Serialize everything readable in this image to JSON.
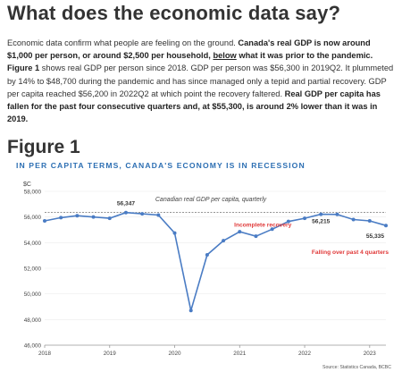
{
  "heading": "What does the economic data say?",
  "paragraph": {
    "p1": "Economic data confirm what people are feeling on the ground. ",
    "b1": "Canada's real GDP is now around $1,000 per person, or around $2,500 per household, ",
    "u1": "below",
    "b2": " what it was prior to the pandemic.",
    "p2": " ",
    "b3": "Figure 1",
    "p3": " shows real GDP per person since 2018. GDP per person was $56,300 in 2019Q2. It plummeted by 14% to $48,700 during the pandemic and has since managed only a tepid and partial recovery. GDP per capita reached $56,200 in 2022Q2 at which point the recovery faltered. ",
    "b4": "Real GDP per capita has fallen for the past four consecutive quarters and, at $55,300, is around 2% lower than it was in 2019."
  },
  "figure_label": "Figure 1",
  "chart_data": {
    "type": "line",
    "title": "IN PER CAPITA TERMS, CANADA'S ECONOMY IS IN RECESSION",
    "subtitle": "Canadian real GDP per capita, quarterly",
    "ylabel": "$C",
    "source": "Source: Statistics Canada, BCBC",
    "ylim": [
      46000,
      58000
    ],
    "yticks": [
      46000,
      48000,
      50000,
      52000,
      54000,
      56000,
      58000
    ],
    "ytick_labels": [
      "46,000",
      "48,000",
      "50,000",
      "52,000",
      "54,000",
      "56,000",
      "58,000"
    ],
    "xlim": [
      2018.0,
      2023.25
    ],
    "xticks": [
      2018,
      2019,
      2020,
      2021,
      2022,
      2023
    ],
    "xtick_labels": [
      "2018",
      "2019",
      "2020",
      "2021",
      "2022",
      "2023"
    ],
    "reference_line": 56347,
    "series": [
      {
        "x": [
          2018.0,
          2018.25,
          2018.5,
          2018.75,
          2019.0,
          2019.25,
          2019.5,
          2019.75,
          2020.0,
          2020.25,
          2020.5,
          2020.75,
          2021.0,
          2021.25,
          2021.5,
          2021.75,
          2022.0,
          2022.25,
          2022.5,
          2022.75,
          2023.0,
          2023.25
        ],
        "values": [
          55700,
          55950,
          56100,
          56000,
          55900,
          56347,
          56250,
          56150,
          54750,
          48700,
          53050,
          54150,
          54850,
          54500,
          55050,
          55650,
          55900,
          56215,
          56200,
          55800,
          55700,
          55335
        ]
      }
    ],
    "annotations": [
      {
        "text": "56,347",
        "x": 2019.25,
        "y": 56347,
        "color": "#333333",
        "bold": true
      },
      {
        "text": "Incomplete recovery",
        "x": 2021.3,
        "y": 55250,
        "color": "#e03a3a",
        "bold": true
      },
      {
        "text": "56,215",
        "x": 2022.25,
        "y": 56215,
        "color": "#333333",
        "bold": true
      },
      {
        "text": "55,335",
        "x": 2023.25,
        "y": 55335,
        "color": "#333333",
        "bold": true
      },
      {
        "text": "Falling over past 4 quarters",
        "x": 2022.7,
        "y": 53100,
        "color": "#e03a3a",
        "bold": true
      }
    ],
    "colors": {
      "line": "#4a7cc4",
      "axis_text": "#444444",
      "reference": "#555555",
      "accent": "#e03a3a",
      "title": "#2d6fb3"
    }
  }
}
